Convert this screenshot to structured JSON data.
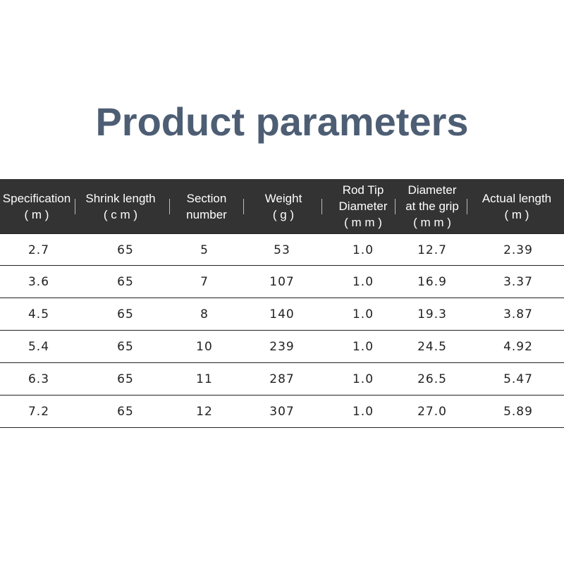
{
  "header": {
    "title": "Product parameters"
  },
  "table": {
    "columns": [
      {
        "title_lines": [
          "Specification"
        ],
        "unit": "( m )"
      },
      {
        "title_lines": [
          "Shrink length"
        ],
        "unit": "( c m )"
      },
      {
        "title_lines": [
          "Section",
          "number"
        ]
      },
      {
        "title_lines": [
          "Weight"
        ],
        "unit": "( g )"
      },
      {
        "title_lines": [
          "Rod Tip",
          "Diameter"
        ],
        "unit": "( m m )"
      },
      {
        "title_lines": [
          "Diameter",
          "at the grip"
        ],
        "unit": "( m m )"
      },
      {
        "title_lines": [
          "Actual length"
        ],
        "unit": "( m )"
      }
    ],
    "rows": [
      [
        "2.7",
        "65",
        "5",
        "53",
        "1.0",
        "12.7",
        "2.39"
      ],
      [
        "3.6",
        "65",
        "7",
        "107",
        "1.0",
        "16.9",
        "3.37"
      ],
      [
        "4.5",
        "65",
        "8",
        "140",
        "1.0",
        "19.3",
        "3.87"
      ],
      [
        "5.4",
        "65",
        "10",
        "239",
        "1.0",
        "24.5",
        "4.92"
      ],
      [
        "6.3",
        "65",
        "11",
        "287",
        "1.0",
        "26.5",
        "5.47"
      ],
      [
        "7.2",
        "65",
        "12",
        "307",
        "1.0",
        "27.0",
        "5.89"
      ]
    ]
  }
}
